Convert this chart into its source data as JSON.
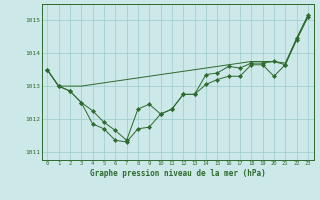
{
  "line1_x": [
    0,
    1,
    2,
    3,
    4,
    5,
    6,
    7,
    8,
    9,
    10,
    11,
    12,
    13,
    14,
    15,
    16,
    17,
    18,
    19,
    20,
    21,
    22,
    23
  ],
  "line1_y": [
    1013.5,
    1013.0,
    1012.85,
    1012.5,
    1011.85,
    1011.7,
    1011.35,
    1011.3,
    1011.7,
    1011.75,
    1012.15,
    1012.3,
    1012.75,
    1012.75,
    1013.05,
    1013.2,
    1013.3,
    1013.3,
    1013.65,
    1013.65,
    1013.3,
    1013.65,
    1014.4,
    1015.1
  ],
  "line2_x": [
    0,
    1,
    2,
    3,
    4,
    5,
    6,
    7,
    8,
    9,
    10,
    11,
    12,
    13,
    14,
    15,
    16,
    17,
    18,
    19,
    20,
    21,
    22,
    23
  ],
  "line2_y": [
    1013.5,
    1013.0,
    1012.85,
    1012.5,
    1012.25,
    1011.9,
    1011.65,
    1011.35,
    1012.3,
    1012.45,
    1012.15,
    1012.3,
    1012.75,
    1012.75,
    1013.35,
    1013.4,
    1013.6,
    1013.55,
    1013.7,
    1013.7,
    1013.75,
    1013.65,
    1014.45,
    1015.15
  ],
  "line3_x": [
    0,
    1,
    2,
    3,
    4,
    5,
    6,
    7,
    8,
    9,
    10,
    11,
    12,
    13,
    14,
    15,
    16,
    17,
    18,
    19,
    20,
    21,
    22,
    23
  ],
  "line3_y": [
    1013.5,
    1013.0,
    1013.0,
    1013.0,
    1013.05,
    1013.1,
    1013.15,
    1013.2,
    1013.25,
    1013.3,
    1013.35,
    1013.4,
    1013.45,
    1013.5,
    1013.55,
    1013.6,
    1013.65,
    1013.7,
    1013.75,
    1013.75,
    1013.75,
    1013.7,
    1014.45,
    1015.15
  ],
  "ylim": [
    1010.75,
    1015.5
  ],
  "yticks": [
    1011,
    1012,
    1013,
    1014,
    1015
  ],
  "xlim": [
    -0.5,
    23.5
  ],
  "xticks": [
    0,
    1,
    2,
    3,
    4,
    5,
    6,
    7,
    8,
    9,
    10,
    11,
    12,
    13,
    14,
    15,
    16,
    17,
    18,
    19,
    20,
    21,
    22,
    23
  ],
  "xlabel": "Graphe pression niveau de la mer (hPa)",
  "line_color": "#2d6a2d",
  "bg_color": "#cce8e8",
  "grid_color": "#99cccc",
  "marker": "D",
  "marker_size": 2.2,
  "lw": 0.7
}
